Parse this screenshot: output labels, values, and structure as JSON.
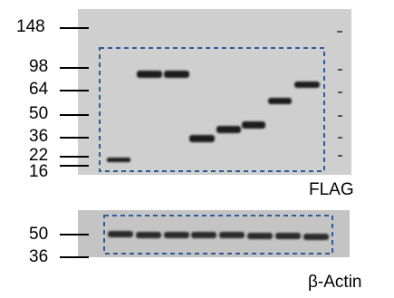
{
  "upper_blot": {
    "markers": [
      "148",
      "98",
      "64",
      "50",
      "36",
      "22",
      "16"
    ],
    "antibody_label": "FLAG",
    "lanes": 8
  },
  "lower_blot": {
    "markers": [
      "50",
      "36"
    ],
    "antibody_label": "β-Actin",
    "lanes": 8
  },
  "colors": {
    "membrane_upper": "#cfcfcf",
    "membrane_lower": "#c4c4c4",
    "band": "#1f1f1f",
    "box_outline": "#2f5a9a"
  }
}
